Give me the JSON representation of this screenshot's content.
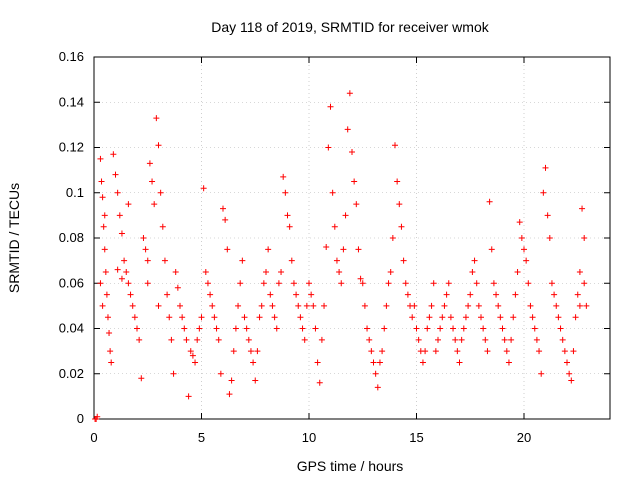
{
  "chart_data": {
    "type": "scatter",
    "title": "Day 118 of 2019, SRMTID for receiver wmok",
    "xlabel": "GPS time / hours",
    "ylabel": "SRMTID / TECUs",
    "xlim": [
      0,
      24
    ],
    "ylim": [
      0,
      0.16
    ],
    "x_ticks": [
      0,
      5,
      10,
      15,
      20
    ],
    "x_tick_labels": [
      "0",
      "5",
      "10",
      "15",
      "20"
    ],
    "y_ticks": [
      0,
      0.02,
      0.04,
      0.06,
      0.08,
      0.1,
      0.12,
      0.14,
      0.16
    ],
    "y_tick_labels": [
      "0",
      "0.02",
      "0.04",
      "0.06",
      "0.08",
      "0.1",
      "0.12",
      "0.14",
      "0.16"
    ],
    "grid": true,
    "marker": "+",
    "series": [
      {
        "name": "SRMTID",
        "color": "#ff0000",
        "points": [
          [
            0.05,
            0.0
          ],
          [
            0.1,
            0.0
          ],
          [
            0.15,
            0.001
          ],
          [
            0.3,
            0.115
          ],
          [
            0.35,
            0.105
          ],
          [
            0.4,
            0.098
          ],
          [
            0.45,
            0.085
          ],
          [
            0.5,
            0.09
          ],
          [
            0.55,
            0.065
          ],
          [
            0.6,
            0.055
          ],
          [
            0.65,
            0.045
          ],
          [
            0.7,
            0.038
          ],
          [
            0.75,
            0.03
          ],
          [
            0.8,
            0.025
          ],
          [
            0.3,
            0.06
          ],
          [
            0.4,
            0.05
          ],
          [
            0.5,
            0.075
          ],
          [
            0.9,
            0.117
          ],
          [
            1.0,
            0.108
          ],
          [
            1.1,
            0.1
          ],
          [
            1.2,
            0.09
          ],
          [
            1.3,
            0.082
          ],
          [
            1.4,
            0.07
          ],
          [
            1.5,
            0.065
          ],
          [
            1.6,
            0.06
          ],
          [
            1.7,
            0.055
          ],
          [
            1.8,
            0.05
          ],
          [
            1.9,
            0.045
          ],
          [
            2.0,
            0.04
          ],
          [
            2.1,
            0.035
          ],
          [
            2.2,
            0.018
          ],
          [
            1.1,
            0.066
          ],
          [
            1.3,
            0.062
          ],
          [
            1.6,
            0.095
          ],
          [
            2.3,
            0.08
          ],
          [
            2.4,
            0.075
          ],
          [
            2.5,
            0.07
          ],
          [
            2.6,
            0.113
          ],
          [
            2.7,
            0.105
          ],
          [
            2.8,
            0.095
          ],
          [
            2.9,
            0.133
          ],
          [
            3.0,
            0.121
          ],
          [
            3.1,
            0.1
          ],
          [
            3.2,
            0.085
          ],
          [
            3.3,
            0.07
          ],
          [
            3.4,
            0.055
          ],
          [
            3.5,
            0.045
          ],
          [
            3.6,
            0.035
          ],
          [
            3.7,
            0.02
          ],
          [
            2.5,
            0.06
          ],
          [
            3.0,
            0.05
          ],
          [
            3.8,
            0.065
          ],
          [
            3.9,
            0.058
          ],
          [
            4.0,
            0.05
          ],
          [
            4.1,
            0.045
          ],
          [
            4.2,
            0.04
          ],
          [
            4.3,
            0.035
          ],
          [
            4.4,
            0.01
          ],
          [
            4.5,
            0.03
          ],
          [
            4.6,
            0.028
          ],
          [
            4.7,
            0.025
          ],
          [
            4.8,
            0.035
          ],
          [
            4.9,
            0.04
          ],
          [
            5.0,
            0.045
          ],
          [
            5.1,
            0.102
          ],
          [
            5.2,
            0.065
          ],
          [
            5.3,
            0.06
          ],
          [
            5.4,
            0.055
          ],
          [
            5.5,
            0.05
          ],
          [
            5.6,
            0.045
          ],
          [
            5.7,
            0.04
          ],
          [
            5.8,
            0.035
          ],
          [
            5.9,
            0.02
          ],
          [
            6.0,
            0.093
          ],
          [
            6.1,
            0.088
          ],
          [
            6.2,
            0.075
          ],
          [
            6.3,
            0.011
          ],
          [
            6.4,
            0.017
          ],
          [
            6.5,
            0.03
          ],
          [
            6.6,
            0.04
          ],
          [
            6.7,
            0.05
          ],
          [
            6.8,
            0.06
          ],
          [
            6.9,
            0.07
          ],
          [
            7.0,
            0.045
          ],
          [
            7.1,
            0.04
          ],
          [
            7.2,
            0.035
          ],
          [
            7.3,
            0.03
          ],
          [
            7.4,
            0.025
          ],
          [
            7.5,
            0.017
          ],
          [
            7.6,
            0.03
          ],
          [
            7.7,
            0.045
          ],
          [
            7.8,
            0.05
          ],
          [
            7.9,
            0.06
          ],
          [
            8.0,
            0.065
          ],
          [
            8.1,
            0.075
          ],
          [
            8.2,
            0.055
          ],
          [
            8.3,
            0.05
          ],
          [
            8.4,
            0.045
          ],
          [
            8.5,
            0.04
          ],
          [
            8.6,
            0.06
          ],
          [
            8.7,
            0.065
          ],
          [
            8.8,
            0.107
          ],
          [
            8.9,
            0.1
          ],
          [
            9.0,
            0.09
          ],
          [
            9.1,
            0.085
          ],
          [
            9.2,
            0.07
          ],
          [
            9.3,
            0.06
          ],
          [
            9.4,
            0.055
          ],
          [
            9.5,
            0.05
          ],
          [
            9.6,
            0.045
          ],
          [
            9.7,
            0.04
          ],
          [
            9.8,
            0.035
          ],
          [
            9.9,
            0.05
          ],
          [
            10.0,
            0.06
          ],
          [
            10.1,
            0.055
          ],
          [
            10.2,
            0.05
          ],
          [
            10.3,
            0.04
          ],
          [
            10.4,
            0.025
          ],
          [
            10.5,
            0.016
          ],
          [
            10.6,
            0.035
          ],
          [
            10.7,
            0.05
          ],
          [
            10.8,
            0.076
          ],
          [
            10.9,
            0.12
          ],
          [
            11.0,
            0.138
          ],
          [
            11.1,
            0.1
          ],
          [
            11.2,
            0.085
          ],
          [
            11.3,
            0.07
          ],
          [
            11.4,
            0.065
          ],
          [
            11.5,
            0.06
          ],
          [
            11.6,
            0.075
          ],
          [
            11.7,
            0.09
          ],
          [
            11.8,
            0.128
          ],
          [
            11.9,
            0.144
          ],
          [
            12.0,
            0.118
          ],
          [
            12.1,
            0.105
          ],
          [
            12.2,
            0.095
          ],
          [
            12.3,
            0.075
          ],
          [
            12.4,
            0.062
          ],
          [
            12.5,
            0.06
          ],
          [
            12.6,
            0.05
          ],
          [
            12.7,
            0.04
          ],
          [
            12.8,
            0.035
          ],
          [
            12.9,
            0.03
          ],
          [
            13.0,
            0.025
          ],
          [
            13.1,
            0.02
          ],
          [
            13.2,
            0.014
          ],
          [
            13.3,
            0.025
          ],
          [
            13.4,
            0.03
          ],
          [
            13.5,
            0.04
          ],
          [
            13.6,
            0.05
          ],
          [
            13.7,
            0.06
          ],
          [
            13.8,
            0.065
          ],
          [
            13.9,
            0.08
          ],
          [
            14.0,
            0.121
          ],
          [
            14.1,
            0.105
          ],
          [
            14.2,
            0.095
          ],
          [
            14.3,
            0.085
          ],
          [
            14.4,
            0.07
          ],
          [
            14.5,
            0.06
          ],
          [
            14.6,
            0.055
          ],
          [
            14.7,
            0.05
          ],
          [
            14.8,
            0.045
          ],
          [
            14.9,
            0.05
          ],
          [
            15.0,
            0.04
          ],
          [
            15.1,
            0.035
          ],
          [
            15.2,
            0.03
          ],
          [
            15.3,
            0.025
          ],
          [
            15.4,
            0.03
          ],
          [
            15.5,
            0.04
          ],
          [
            15.6,
            0.045
          ],
          [
            15.7,
            0.05
          ],
          [
            15.8,
            0.06
          ],
          [
            15.9,
            0.03
          ],
          [
            16.0,
            0.035
          ],
          [
            16.1,
            0.04
          ],
          [
            16.2,
            0.045
          ],
          [
            16.3,
            0.05
          ],
          [
            16.4,
            0.055
          ],
          [
            16.5,
            0.06
          ],
          [
            16.6,
            0.045
          ],
          [
            16.7,
            0.04
          ],
          [
            16.8,
            0.035
          ],
          [
            16.9,
            0.03
          ],
          [
            17.0,
            0.025
          ],
          [
            17.1,
            0.035
          ],
          [
            17.2,
            0.04
          ],
          [
            17.3,
            0.045
          ],
          [
            17.4,
            0.05
          ],
          [
            17.5,
            0.055
          ],
          [
            17.6,
            0.065
          ],
          [
            17.7,
            0.07
          ],
          [
            17.8,
            0.06
          ],
          [
            17.9,
            0.05
          ],
          [
            18.0,
            0.045
          ],
          [
            18.1,
            0.04
          ],
          [
            18.2,
            0.035
          ],
          [
            18.3,
            0.03
          ],
          [
            18.4,
            0.096
          ],
          [
            18.5,
            0.075
          ],
          [
            18.6,
            0.06
          ],
          [
            18.7,
            0.055
          ],
          [
            18.8,
            0.05
          ],
          [
            18.9,
            0.045
          ],
          [
            19.0,
            0.04
          ],
          [
            19.1,
            0.035
          ],
          [
            19.2,
            0.03
          ],
          [
            19.3,
            0.025
          ],
          [
            19.4,
            0.035
          ],
          [
            19.5,
            0.045
          ],
          [
            19.6,
            0.055
          ],
          [
            19.7,
            0.065
          ],
          [
            19.8,
            0.087
          ],
          [
            19.9,
            0.08
          ],
          [
            20.0,
            0.075
          ],
          [
            20.1,
            0.07
          ],
          [
            20.2,
            0.06
          ],
          [
            20.3,
            0.05
          ],
          [
            20.4,
            0.045
          ],
          [
            20.5,
            0.04
          ],
          [
            20.6,
            0.035
          ],
          [
            20.7,
            0.03
          ],
          [
            20.8,
            0.02
          ],
          [
            20.9,
            0.1
          ],
          [
            21.0,
            0.111
          ],
          [
            21.1,
            0.09
          ],
          [
            21.2,
            0.08
          ],
          [
            21.3,
            0.06
          ],
          [
            21.4,
            0.055
          ],
          [
            21.5,
            0.05
          ],
          [
            21.6,
            0.045
          ],
          [
            21.7,
            0.04
          ],
          [
            21.8,
            0.035
          ],
          [
            21.9,
            0.03
          ],
          [
            22.0,
            0.025
          ],
          [
            22.1,
            0.02
          ],
          [
            22.2,
            0.017
          ],
          [
            22.3,
            0.03
          ],
          [
            22.4,
            0.045
          ],
          [
            22.5,
            0.055
          ],
          [
            22.6,
            0.065
          ],
          [
            22.7,
            0.093
          ],
          [
            22.8,
            0.08
          ],
          [
            22.6,
            0.05
          ],
          [
            22.8,
            0.06
          ],
          [
            22.9,
            0.05
          ]
        ]
      }
    ]
  }
}
